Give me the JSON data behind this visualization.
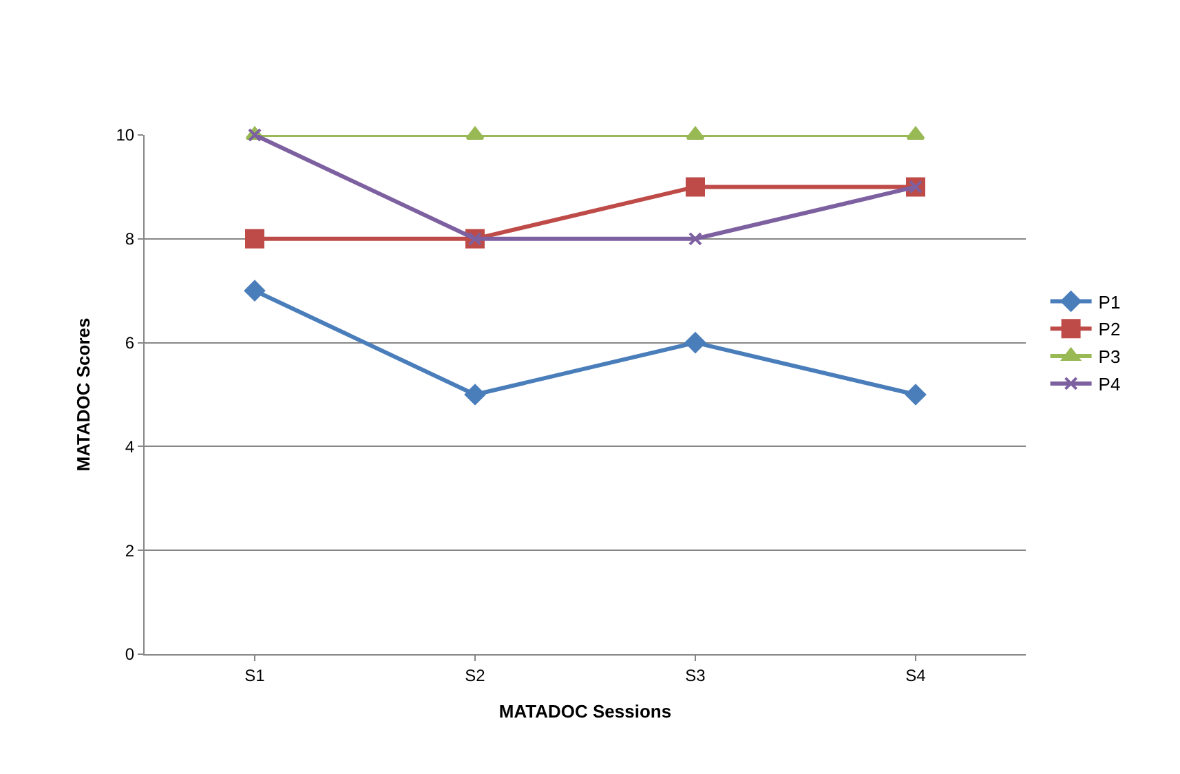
{
  "chart_data": {
    "type": "line",
    "xlabel": "MATADOC Sessions",
    "ylabel": "MATADOC Scores",
    "categories": [
      "S1",
      "S2",
      "S3",
      "S4"
    ],
    "series": [
      {
        "name": "P1",
        "color": "#4a7ebb",
        "values": [
          7,
          5,
          6,
          5
        ],
        "marker": "diamond"
      },
      {
        "name": "P2",
        "color": "#be4b48",
        "values": [
          8,
          8,
          9,
          9
        ],
        "marker": "square"
      },
      {
        "name": "P3",
        "color": "#98b954",
        "values": [
          10,
          10,
          10,
          10
        ],
        "marker": "triangle"
      },
      {
        "name": "P4",
        "color": "#7d60a0",
        "values": [
          10,
          8,
          8,
          9
        ],
        "marker": "cross"
      }
    ],
    "ylim": [
      0,
      10
    ],
    "yticks": [
      0,
      2,
      4,
      6,
      8,
      10
    ],
    "grid": "y",
    "legend": "right",
    "line_style": "solid"
  }
}
